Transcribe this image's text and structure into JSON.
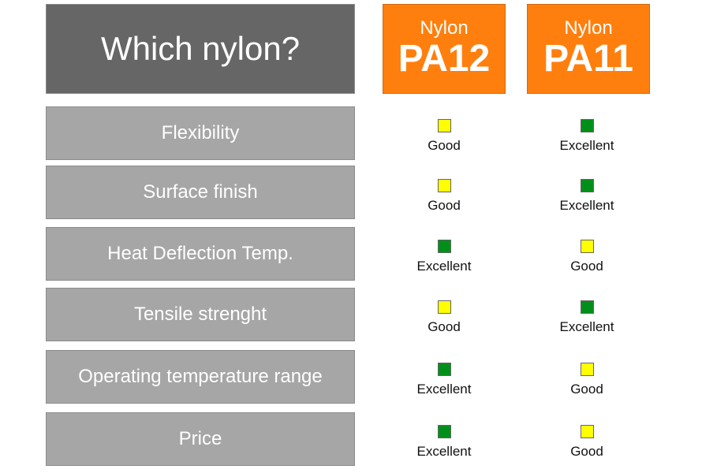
{
  "title": "Which nylon?",
  "products": [
    {
      "prefix": "Nylon",
      "name": "PA12"
    },
    {
      "prefix": "Nylon",
      "name": "PA11"
    }
  ],
  "colors": {
    "header": "#666666",
    "product": "#ff7f0e",
    "row": "#a6a6a6",
    "good": "#ffff00",
    "excellent": "#00901a"
  },
  "rows": [
    {
      "label": "Flexibility",
      "ratings": [
        "Good",
        "Excellent"
      ]
    },
    {
      "label": "Surface finish",
      "ratings": [
        "Good",
        "Excellent"
      ]
    },
    {
      "label": "Heat Deflection Temp.",
      "ratings": [
        "Excellent",
        "Good"
      ]
    },
    {
      "label": "Tensile strenght",
      "ratings": [
        "Good",
        "Excellent"
      ]
    },
    {
      "label": "Operating temperature range",
      "ratings": [
        "Excellent",
        "Good"
      ]
    },
    {
      "label": "Price",
      "ratings": [
        "Excellent",
        "Good"
      ]
    }
  ]
}
